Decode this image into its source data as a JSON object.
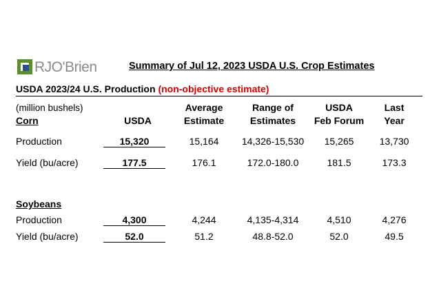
{
  "logo": {
    "text": "RJO'Brien",
    "colors": {
      "green": "#5a8f2b",
      "blue": "#2f4f8f",
      "gray": "#8a8a8a"
    }
  },
  "title": "Summary of Jul 12, 2023 USDA U.S. Crop Estimates",
  "subtitle": {
    "main": "USDA 2023/24 U.S. Production",
    "note": "(non-objective estimate)",
    "note_color": "#d00000"
  },
  "units": "(million bushels)",
  "columns": {
    "usda": [
      "",
      "USDA"
    ],
    "average": [
      "Average",
      "Estimate"
    ],
    "range": [
      "Range of",
      "Estimates"
    ],
    "forum": [
      "USDA",
      "Feb Forum"
    ],
    "last": [
      "Last",
      "Year"
    ]
  },
  "corn": {
    "heading": "Corn",
    "rows": [
      {
        "label": "Production",
        "usda": "15,320",
        "average": "15,164",
        "range": "14,326-15,530",
        "forum": "15,265",
        "last": "13,730"
      },
      {
        "label": "Yield (bu/acre)",
        "usda": "177.5",
        "average": "176.1",
        "range": "172.0-180.0",
        "forum": "181.5",
        "last": "173.3"
      }
    ]
  },
  "soybeans": {
    "heading": "Soybeans",
    "rows": [
      {
        "label": "Production",
        "usda": "4,300",
        "average": "4,244",
        "range": "4,135-4,314",
        "forum": "4,510",
        "last": "4,276"
      },
      {
        "label": "Yield (bu/acre)",
        "usda": "52.0",
        "average": "51.2",
        "range": "48.8-52.0",
        "forum": "52.0",
        "last": "49.5"
      }
    ]
  }
}
